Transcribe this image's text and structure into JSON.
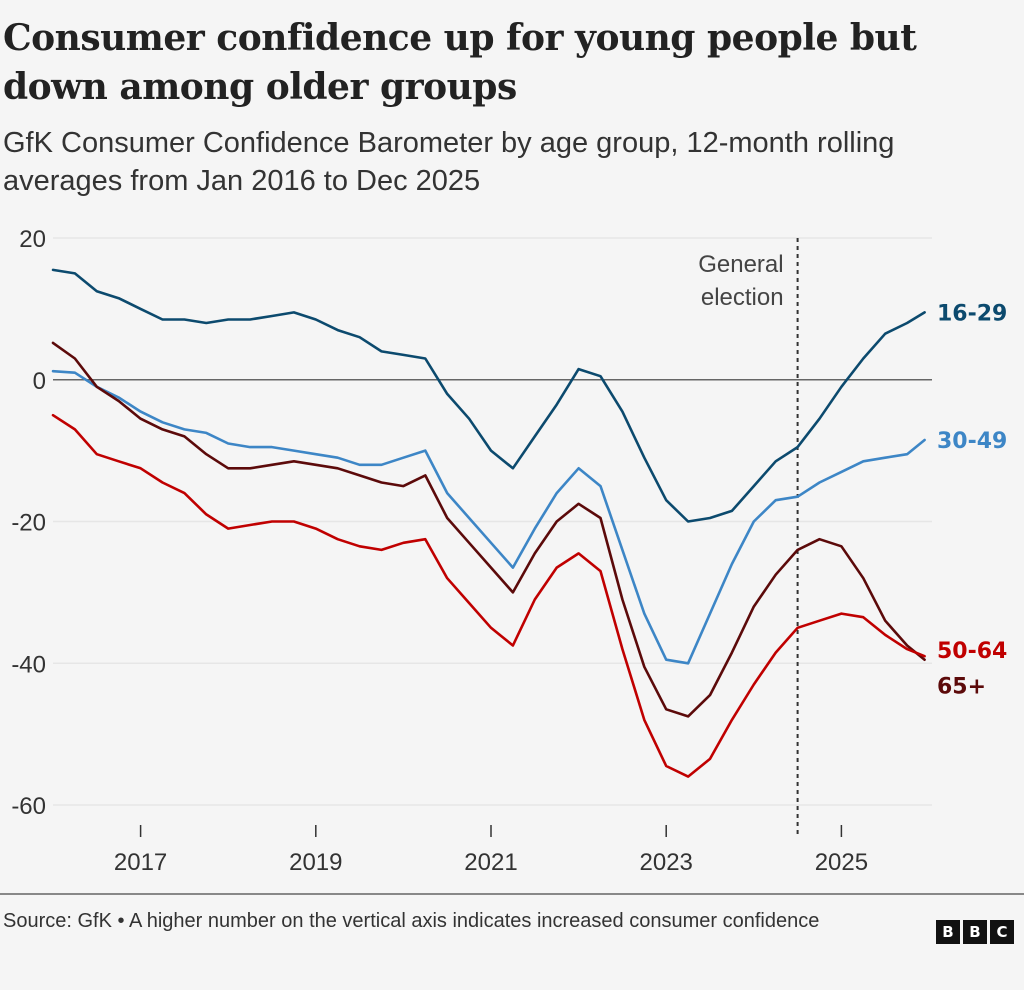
{
  "header": {
    "title": "Consumer confidence up for young people but down among older groups",
    "subtitle": "GfK Consumer Confidence Barometer by age group, 12-month rolling averages from Jan 2016 to Dec 2025"
  },
  "footer": {
    "source": "Source: GfK • A higher number on the vertical axis indicates increased consumer confidence",
    "logo_letters": [
      "B",
      "B",
      "C"
    ]
  },
  "chart_data": {
    "type": "line",
    "title": "Consumer confidence up for young people but down among older groups",
    "subtitle": "GfK Consumer Confidence Barometer by age group, 12-month rolling averages from Jan 2016 to Dec 2025",
    "xlabel": "",
    "ylabel": "",
    "xlim": [
      2016.0,
      2025.95
    ],
    "ylim": [
      -60,
      20
    ],
    "yticks": [
      20,
      0,
      -20,
      -40,
      -60
    ],
    "ytick_labels": [
      "20",
      "0",
      "-20",
      "-40",
      "-60"
    ],
    "xticks": [
      2017,
      2019,
      2021,
      2023,
      2025
    ],
    "xtick_labels": [
      "2017",
      "2019",
      "2021",
      "2023",
      "2025"
    ],
    "grid": true,
    "zero_line": true,
    "legend": "direct-labels-right",
    "annotations": [
      {
        "text_lines": [
          "General",
          "election"
        ],
        "x": 2024.5,
        "style": "dotted-vertical-line"
      }
    ],
    "x": [
      2016.0,
      2016.25,
      2016.5,
      2016.75,
      2017.0,
      2017.25,
      2017.5,
      2017.75,
      2018.0,
      2018.25,
      2018.5,
      2018.75,
      2019.0,
      2019.25,
      2019.5,
      2019.75,
      2020.0,
      2020.25,
      2020.5,
      2020.75,
      2021.0,
      2021.25,
      2021.5,
      2021.75,
      2022.0,
      2022.25,
      2022.5,
      2022.75,
      2023.0,
      2023.25,
      2023.5,
      2023.75,
      2024.0,
      2024.25,
      2024.5,
      2024.75,
      2025.0,
      2025.25,
      2025.5,
      2025.75,
      2025.95
    ],
    "series": [
      {
        "name": "16-29",
        "color": "#0c4a6e",
        "values": [
          15.5,
          15.0,
          12.5,
          11.5,
          10.0,
          8.5,
          8.5,
          8.0,
          8.5,
          8.5,
          9.0,
          9.5,
          8.5,
          7.0,
          6.0,
          4.0,
          3.5,
          3.0,
          -2.0,
          -5.5,
          -10.0,
          -12.5,
          -8.0,
          -3.5,
          1.5,
          0.5,
          -4.5,
          -11.0,
          -17.0,
          -20.0,
          -19.5,
          -18.5,
          -15.0,
          -11.5,
          -9.5,
          -5.5,
          -1.0,
          3.0,
          6.5,
          8.0,
          9.5
        ]
      },
      {
        "name": "30-49",
        "color": "#3d86c6",
        "values": [
          1.2,
          1.0,
          -1.0,
          -2.5,
          -4.5,
          -6.0,
          -7.0,
          -7.5,
          -9.0,
          -9.5,
          -9.5,
          -10.0,
          -10.5,
          -11.0,
          -12.0,
          -12.0,
          -11.0,
          -10.0,
          -16.0,
          -19.5,
          -23.0,
          -26.5,
          -21.0,
          -16.0,
          -12.5,
          -15.0,
          -24.0,
          -33.0,
          -39.5,
          -40.0,
          -33.0,
          -26.0,
          -20.0,
          -17.0,
          -16.5,
          -14.5,
          -13.0,
          -11.5,
          -11.0,
          -10.5,
          -8.5
        ]
      },
      {
        "name": "65+",
        "color": "#5c0a0a",
        "values": [
          5.2,
          3.0,
          -1.0,
          -3.0,
          -5.5,
          -7.0,
          -8.0,
          -10.5,
          -12.5,
          -12.5,
          -12.0,
          -11.5,
          -12.0,
          -12.5,
          -13.5,
          -14.5,
          -15.0,
          -13.5,
          -19.5,
          -23.0,
          -26.5,
          -30.0,
          -24.5,
          -20.0,
          -17.5,
          -19.5,
          -31.0,
          -40.5,
          -46.5,
          -47.5,
          -44.5,
          -38.5,
          -32.0,
          -27.5,
          -24.0,
          -22.5,
          -23.5,
          -28.0,
          -34.0,
          -37.5,
          -39.5
        ]
      },
      {
        "name": "50-64",
        "color": "#c00000",
        "values": [
          -5.0,
          -7.0,
          -10.5,
          -11.5,
          -12.5,
          -14.5,
          -16.0,
          -19.0,
          -21.0,
          -20.5,
          -20.0,
          -20.0,
          -21.0,
          -22.5,
          -23.5,
          -24.0,
          -23.0,
          -22.5,
          -28.0,
          -31.5,
          -35.0,
          -37.5,
          -31.0,
          -26.5,
          -24.5,
          -27.0,
          -38.0,
          -48.0,
          -54.5,
          -56.0,
          -53.5,
          -48.0,
          -43.0,
          -38.5,
          -35.0,
          -34.0,
          -33.0,
          -33.5,
          -36.0,
          -38.0,
          -39.0
        ]
      }
    ]
  }
}
